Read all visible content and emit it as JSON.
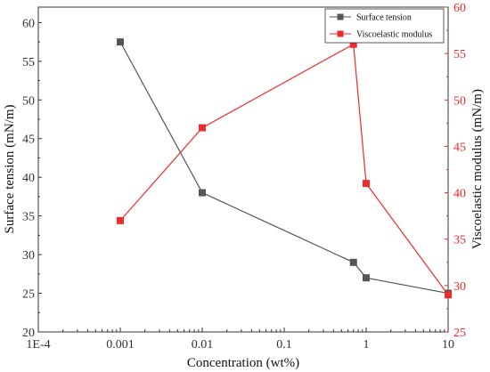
{
  "chart_data": {
    "type": "line",
    "xlabel": "Concentration  (wt%)",
    "x_scale": "log",
    "xlim": [
      0.0001,
      10
    ],
    "x_ticks": [
      "1E-4",
      "0.001",
      "0.01",
      "0.1",
      "1",
      "10"
    ],
    "y_left": {
      "label": "Surface tension  (mN/m)",
      "lim": [
        20,
        62
      ],
      "ticks": [
        "20",
        "25",
        "30",
        "35",
        "40",
        "45",
        "50",
        "55",
        "60"
      ]
    },
    "y_right": {
      "label": "Viscoelastic modulus  (mN/m)",
      "lim": [
        25,
        60
      ],
      "ticks": [
        "25",
        "30",
        "35",
        "40",
        "45",
        "50",
        "55",
        "60"
      ]
    },
    "legend_position": "top-right",
    "series": [
      {
        "name": "Surface tension",
        "axis": "left",
        "color": "#555555",
        "marker": "square",
        "x": [
          0.001,
          0.01,
          0.7,
          1,
          10
        ],
        "y": [
          57.5,
          38,
          29,
          27,
          25
        ]
      },
      {
        "name": "Viscoelastic modulus",
        "axis": "right",
        "color": "#ee2a2a",
        "marker": "square",
        "x": [
          0.001,
          0.01,
          0.7,
          1,
          10
        ],
        "y": [
          37,
          47,
          56,
          41,
          29
        ]
      }
    ]
  }
}
